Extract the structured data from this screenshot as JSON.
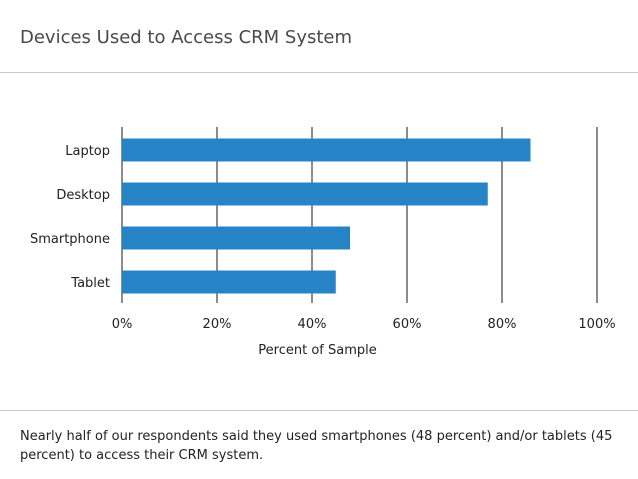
{
  "title": "Devices Used to Access CRM System",
  "caption": "Nearly half of our respondents said they used smartphones (48 percent) and/or tablets (45 percent) to access their CRM system.",
  "colors": {
    "bar": "#2683c6",
    "grid": "#1a1a1a",
    "rule": "#c8c8c8"
  },
  "chart_data": {
    "type": "bar",
    "orientation": "horizontal",
    "categories": [
      "Laptop",
      "Desktop",
      "Smartphone",
      "Tablet"
    ],
    "values": [
      86,
      77,
      48,
      45
    ],
    "xlabel": "Percent of Sample",
    "ylabel": "",
    "xlim": [
      0,
      100
    ],
    "xticks": [
      "0%",
      "20%",
      "40%",
      "60%",
      "80%",
      "100%"
    ],
    "grid": true,
    "legend": "none"
  }
}
